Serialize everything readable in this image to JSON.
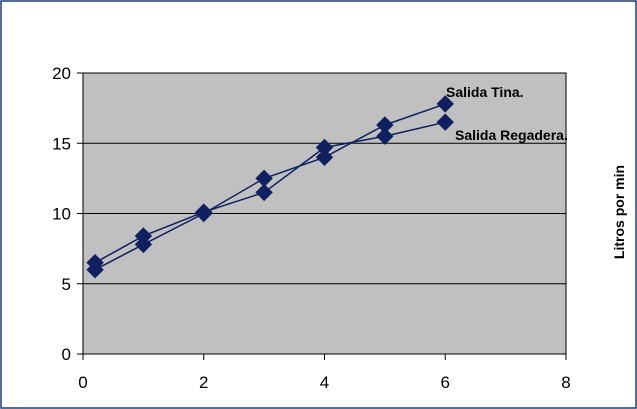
{
  "chart_data": {
    "type": "scatter",
    "title": "",
    "xlabel": "",
    "ylabel": "Litros por min",
    "xlim": [
      0,
      8
    ],
    "ylim": [
      0,
      20
    ],
    "xticks": [
      "0",
      "2",
      "4",
      "6",
      "8"
    ],
    "yticks": [
      "0",
      "5",
      "10",
      "15",
      "20"
    ],
    "grid": "horizontal",
    "plot_background": "#c0c0c0",
    "series_color": "#0f2060",
    "frame_color": "#1f3a7a",
    "series": [
      {
        "name": "Salida Tina.",
        "x": [
          0.2,
          1,
          2,
          3,
          4,
          5,
          6
        ],
        "y": [
          6.0,
          7.8,
          10.0,
          12.5,
          14.0,
          16.3,
          17.8
        ]
      },
      {
        "name": "Salida Regadera.",
        "x": [
          0.2,
          1,
          2,
          3,
          4,
          5,
          6
        ],
        "y": [
          6.5,
          8.4,
          10.1,
          11.5,
          14.7,
          15.5,
          16.5
        ]
      }
    ]
  }
}
